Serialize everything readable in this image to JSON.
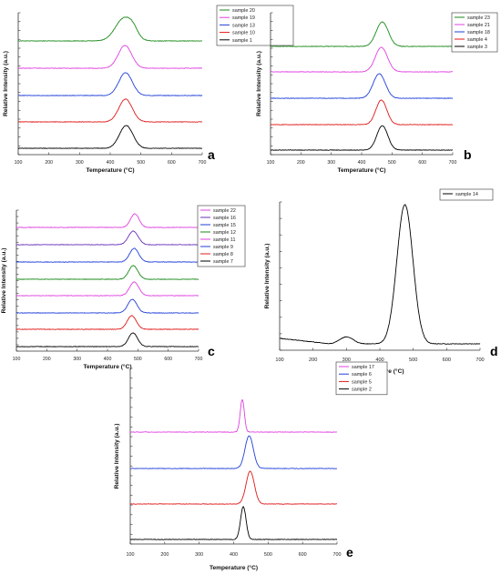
{
  "chart_data": [
    {
      "type": "line",
      "panel_label": "a",
      "xlabel": "Temperature (°C)",
      "ylabel": "Relative Intensity (a.u.)",
      "xlim": [
        100,
        700
      ],
      "xticks": [
        100,
        200,
        300,
        400,
        500,
        600,
        700
      ],
      "grid": false,
      "legend": "top-right",
      "series": [
        {
          "name": "sample 20",
          "color": "#1a8a1a",
          "peak_center": 445,
          "peak_width": 28,
          "peak_height": 1.0,
          "shoulder": 1
        },
        {
          "name": "sample 19",
          "color": "#e040e0",
          "peak_center": 448,
          "peak_width": 22,
          "peak_height": 1.0
        },
        {
          "name": "sample 13",
          "color": "#1f3fd8",
          "peak_center": 450,
          "peak_width": 22,
          "peak_height": 1.0
        },
        {
          "name": "sample 10",
          "color": "#e01818",
          "peak_center": 450,
          "peak_width": 22,
          "peak_height": 1.0
        },
        {
          "name": "sample 1",
          "color": "#000000",
          "peak_center": 452,
          "peak_width": 22,
          "peak_height": 1.0
        }
      ]
    },
    {
      "type": "line",
      "panel_label": "b",
      "xlabel": "Temperature (°C)",
      "ylabel": "Relative Intensity (a.u.)",
      "xlim": [
        100,
        700
      ],
      "xticks": [
        100,
        200,
        300,
        400,
        500,
        600,
        700
      ],
      "grid": false,
      "legend": "top-right",
      "series": [
        {
          "name": "sample 23",
          "color": "#1a8a1a",
          "peak_center": 468,
          "peak_width": 20,
          "peak_height": 1.0
        },
        {
          "name": "sample 21",
          "color": "#e040e0",
          "peak_center": 465,
          "peak_width": 20,
          "peak_height": 1.0
        },
        {
          "name": "sample 18",
          "color": "#1f3fd8",
          "peak_center": 458,
          "peak_width": 20,
          "peak_height": 1.0
        },
        {
          "name": "sample 4",
          "color": "#e01818",
          "peak_center": 465,
          "peak_width": 18,
          "peak_height": 1.0
        },
        {
          "name": "sample 3",
          "color": "#000000",
          "peak_center": 468,
          "peak_width": 18,
          "peak_height": 1.0
        }
      ]
    },
    {
      "type": "line",
      "panel_label": "c",
      "xlabel": "Temperature (°C)",
      "ylabel": "Relative Intensity (a.u.)",
      "xlim": [
        100,
        700
      ],
      "xticks": [
        100,
        200,
        300,
        400,
        500,
        600,
        700
      ],
      "grid": false,
      "legend": "top-right",
      "series": [
        {
          "name": "sample 22",
          "color": "#e040e0",
          "peak_center": 490,
          "peak_width": 14,
          "peak_height": 1.0
        },
        {
          "name": "sample 16",
          "color": "#6a2fb8",
          "peak_center": 485,
          "peak_width": 16,
          "peak_height": 1.0
        },
        {
          "name": "sample 15",
          "color": "#1f3fd8",
          "peak_center": 488,
          "peak_width": 15,
          "peak_height": 1.0
        },
        {
          "name": "sample 12",
          "color": "#1a8a1a",
          "peak_center": 485,
          "peak_width": 15,
          "peak_height": 1.0
        },
        {
          "name": "sample 11",
          "color": "#e040e0",
          "peak_center": 488,
          "peak_width": 15,
          "peak_height": 1.0
        },
        {
          "name": "sample 9",
          "color": "#1f3fd8",
          "peak_center": 482,
          "peak_width": 15,
          "peak_height": 1.0
        },
        {
          "name": "sample 8",
          "color": "#e01818",
          "peak_center": 480,
          "peak_width": 15,
          "peak_height": 1.0
        },
        {
          "name": "sample 7",
          "color": "#000000",
          "peak_center": 484,
          "peak_width": 15,
          "peak_height": 1.0
        }
      ]
    },
    {
      "type": "line",
      "panel_label": "d",
      "xlabel": "Temperature (°C)",
      "ylabel": "Relative Intensity (a.u.)",
      "xlim": [
        100,
        700
      ],
      "xticks": [
        100,
        200,
        300,
        400,
        500,
        600,
        700
      ],
      "grid": false,
      "legend": "top-right",
      "series": [
        {
          "name": "sample 14",
          "color": "#000000",
          "peak_center": 475,
          "peak_width": 24,
          "peak_height": 1.0
        }
      ]
    },
    {
      "type": "line",
      "panel_label": "e",
      "xlabel": "Temperature (°C)",
      "ylabel": "Relative Intensity (a.u.)",
      "xlim": [
        100,
        700
      ],
      "xticks": [
        100,
        200,
        300,
        400,
        500,
        600,
        700
      ],
      "grid": false,
      "legend": "top-right",
      "series": [
        {
          "name": "sample 17",
          "color": "#e040e0",
          "peak_center": 425,
          "peak_width": 6,
          "peak_height": 1.0
        },
        {
          "name": "sample 6",
          "color": "#1f3fd8",
          "peak_center": 445,
          "peak_width": 12,
          "peak_height": 1.0
        },
        {
          "name": "sample 5",
          "color": "#e01818",
          "peak_center": 448,
          "peak_width": 12,
          "peak_height": 1.0
        },
        {
          "name": "sample 2",
          "color": "#000000",
          "peak_center": 428,
          "peak_width": 8,
          "peak_height": 1.0
        }
      ]
    }
  ]
}
